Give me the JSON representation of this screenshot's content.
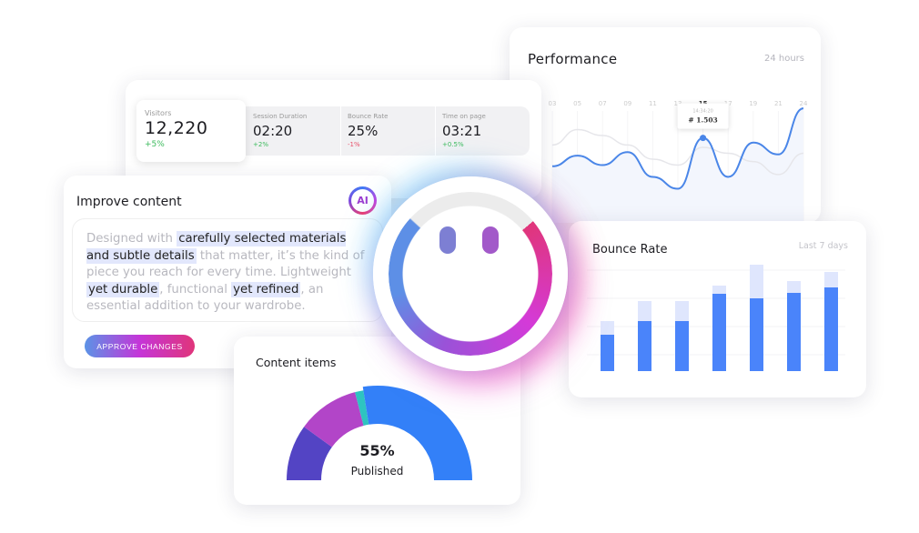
{
  "performance": {
    "title": "Performance",
    "range": "24 hours",
    "chart_data": {
      "type": "line",
      "x": [
        "03",
        "05",
        "07",
        "09",
        "11",
        "13",
        "15",
        "17",
        "19",
        "21",
        "24"
      ],
      "highlight_x": "15",
      "series": [
        {
          "values": [
            44,
            53,
            45,
            56,
            35,
            25,
            68,
            35,
            64,
            54,
            93
          ],
          "color": "#4a86e8"
        },
        {
          "values": [
            62,
            75,
            70,
            62,
            50,
            45,
            60,
            55,
            48,
            37,
            55
          ],
          "color": "#e6e6ea"
        }
      ],
      "tooltip": {
        "time": "14:34:20",
        "value": "# 1.503"
      }
    }
  },
  "stats": {
    "visitors": {
      "label": "Visitors",
      "value": "12,220",
      "delta": "+5%"
    },
    "items": [
      {
        "label": "Session Duration",
        "value": "02:20",
        "delta": "+2%",
        "delta_color": "#3cba5c"
      },
      {
        "label": "Bounce Rate",
        "value": "25%",
        "delta": "-1%",
        "delta_color": "#e8506a"
      },
      {
        "label": "Time on page",
        "value": "03:21",
        "delta": "+0.5%",
        "delta_color": "#3cba5c"
      }
    ]
  },
  "improve": {
    "title": "Improve content",
    "ai_badge": "AI",
    "text_segments": [
      {
        "t": "Designed with ",
        "hl": false
      },
      {
        "t": "carefully selected materials and subtle details",
        "hl": true
      },
      {
        "t": " that matter, it’s the kind of piece you reach for every time. Lightweight ",
        "hl": false
      },
      {
        "t": "yet durable",
        "hl": true
      },
      {
        "t": ", functional ",
        "hl": false
      },
      {
        "t": "yet refined",
        "hl": true
      },
      {
        "t": ", an essential addition to your wardrobe.",
        "hl": false
      }
    ],
    "approve_label": "APPROVE CHANGES"
  },
  "content_items": {
    "title": "Content items",
    "percent": "55%",
    "caption": "Published",
    "chart_data": {
      "type": "pie",
      "shape": "half-donut",
      "values": [
        20,
        22,
        3,
        55
      ],
      "colors": [
        "#5344c4",
        "#b245c8",
        "#2ec4c0",
        "#3380f8"
      ]
    }
  },
  "bounce": {
    "title": "Bounce Rate",
    "range": "Last 7 days",
    "chart_data": {
      "type": "bar",
      "stacked": true,
      "grid": true,
      "series": [
        {
          "values": [
            40,
            55,
            55,
            85,
            80,
            86,
            92
          ],
          "color": "#4a84fa"
        },
        {
          "values": [
            15,
            22,
            22,
            9,
            37,
            13,
            17
          ],
          "color": "#dfe6fd"
        }
      ]
    }
  },
  "mascot": {
    "eye_colors": [
      "#7d7fd3",
      "#a259c9"
    ]
  }
}
